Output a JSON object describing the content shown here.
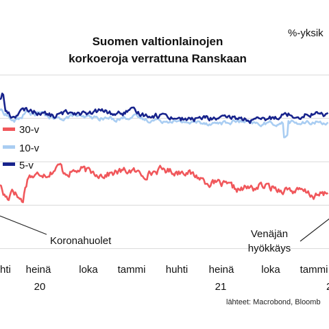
{
  "chart_data": {
    "type": "line",
    "title_lines": [
      "Suomen valtionlainojen",
      "korkoeroja verrattuna Ranskaan"
    ],
    "unit_label": "%-yksik",
    "x_ticks": [
      "hti",
      "heinä",
      "loka",
      "tammi",
      "huhti",
      "heinä",
      "loka",
      "tammi"
    ],
    "x_year_labels": [
      "20",
      "21",
      "2"
    ],
    "ylim": [
      -0.3,
      0.3
    ],
    "gridlines": [
      0.2,
      0.1,
      0.0,
      -0.1,
      -0.2
    ],
    "grid": true,
    "legend_position": "left-middle",
    "series": [
      {
        "name": "30-v",
        "color": "#f0575b",
        "anchors": [
          [
            0,
            -0.05
          ],
          [
            5,
            -0.075
          ],
          [
            12,
            -0.085
          ],
          [
            18,
            -0.06
          ],
          [
            26,
            -0.08
          ],
          [
            33,
            -0.092
          ],
          [
            37,
            -0.058
          ],
          [
            42,
            -0.03
          ],
          [
            50,
            -0.035
          ],
          [
            60,
            -0.025
          ],
          [
            70,
            -0.028
          ],
          [
            80,
            -0.018
          ],
          [
            88,
            -0.008
          ],
          [
            92,
            -0.022
          ],
          [
            100,
            -0.025
          ],
          [
            110,
            -0.022
          ],
          [
            120,
            -0.018
          ],
          [
            130,
            -0.023
          ],
          [
            140,
            -0.026
          ],
          [
            150,
            -0.03
          ],
          [
            160,
            -0.028
          ],
          [
            170,
            -0.024
          ],
          [
            180,
            -0.022
          ],
          [
            190,
            -0.02
          ],
          [
            200,
            -0.025
          ],
          [
            210,
            -0.03
          ],
          [
            220,
            -0.026
          ],
          [
            230,
            -0.02
          ],
          [
            240,
            -0.018
          ],
          [
            250,
            -0.022
          ],
          [
            260,
            -0.024
          ],
          [
            270,
            -0.02
          ],
          [
            280,
            -0.03
          ],
          [
            290,
            -0.035
          ],
          [
            300,
            -0.045
          ],
          [
            310,
            -0.05
          ],
          [
            320,
            -0.05
          ],
          [
            330,
            -0.055
          ],
          [
            340,
            -0.06
          ],
          [
            350,
            -0.065
          ],
          [
            360,
            -0.06
          ],
          [
            370,
            -0.062
          ],
          [
            380,
            -0.055
          ],
          [
            390,
            -0.058
          ],
          [
            400,
            -0.06
          ],
          [
            410,
            -0.065
          ],
          [
            420,
            -0.062
          ],
          [
            430,
            -0.068
          ],
          [
            440,
            -0.068
          ],
          [
            450,
            -0.073
          ],
          [
            460,
            -0.08
          ],
          [
            470,
            -0.075
          ],
          [
            480,
            -0.07
          ]
        ]
      },
      {
        "name": "10-v",
        "color": "#a9cdf2",
        "anchors": [
          [
            0,
            0.12
          ],
          [
            10,
            0.108
          ],
          [
            20,
            0.092
          ],
          [
            30,
            0.102
          ],
          [
            40,
            0.115
          ],
          [
            50,
            0.11
          ],
          [
            60,
            0.112
          ],
          [
            70,
            0.105
          ],
          [
            80,
            0.098
          ],
          [
            90,
            0.1
          ],
          [
            100,
            0.103
          ],
          [
            110,
            0.108
          ],
          [
            120,
            0.1
          ],
          [
            130,
            0.103
          ],
          [
            140,
            0.101
          ],
          [
            150,
            0.099
          ],
          [
            160,
            0.1
          ],
          [
            170,
            0.098
          ],
          [
            180,
            0.101
          ],
          [
            190,
            0.104
          ],
          [
            200,
            0.103
          ],
          [
            210,
            0.098
          ],
          [
            220,
            0.095
          ],
          [
            230,
            0.097
          ],
          [
            240,
            0.094
          ],
          [
            250,
            0.096
          ],
          [
            260,
            0.09
          ],
          [
            270,
            0.093
          ],
          [
            280,
            0.089
          ],
          [
            290,
            0.092
          ],
          [
            300,
            0.09
          ],
          [
            310,
            0.088
          ],
          [
            320,
            0.09
          ],
          [
            330,
            0.089
          ],
          [
            340,
            0.092
          ],
          [
            350,
            0.093
          ],
          [
            360,
            0.09
          ],
          [
            370,
            0.088
          ],
          [
            380,
            0.086
          ],
          [
            390,
            0.089
          ],
          [
            400,
            0.088
          ],
          [
            410,
            0.087
          ],
          [
            420,
            0.092
          ],
          [
            430,
            0.09
          ],
          [
            440,
            0.088
          ],
          [
            450,
            0.089
          ],
          [
            460,
            0.092
          ],
          [
            470,
            0.09
          ],
          [
            480,
            0.092
          ]
        ]
      },
      {
        "name": "5-v",
        "color": "#17238c",
        "anchors": [
          [
            0,
            0.145
          ],
          [
            4,
            0.16
          ],
          [
            8,
            0.118
          ],
          [
            18,
            0.102
          ],
          [
            30,
            0.115
          ],
          [
            40,
            0.12
          ],
          [
            50,
            0.115
          ],
          [
            60,
            0.113
          ],
          [
            70,
            0.108
          ],
          [
            80,
            0.105
          ],
          [
            90,
            0.11
          ],
          [
            100,
            0.115
          ],
          [
            110,
            0.114
          ],
          [
            120,
            0.112
          ],
          [
            130,
            0.108
          ],
          [
            140,
            0.115
          ],
          [
            150,
            0.118
          ],
          [
            160,
            0.112
          ],
          [
            170,
            0.11
          ],
          [
            180,
            0.112
          ],
          [
            190,
            0.118
          ],
          [
            200,
            0.113
          ],
          [
            210,
            0.108
          ],
          [
            220,
            0.108
          ],
          [
            230,
            0.106
          ],
          [
            240,
            0.109
          ],
          [
            250,
            0.103
          ],
          [
            260,
            0.1
          ],
          [
            270,
            0.098
          ],
          [
            280,
            0.097
          ],
          [
            290,
            0.1
          ],
          [
            300,
            0.102
          ],
          [
            310,
            0.099
          ],
          [
            320,
            0.101
          ],
          [
            330,
            0.098
          ],
          [
            340,
            0.102
          ],
          [
            350,
            0.1
          ],
          [
            360,
            0.097
          ],
          [
            370,
            0.094
          ],
          [
            380,
            0.096
          ],
          [
            390,
            0.098
          ],
          [
            400,
            0.102
          ],
          [
            410,
            0.108
          ],
          [
            420,
            0.11
          ],
          [
            430,
            0.105
          ],
          [
            440,
            0.106
          ],
          [
            450,
            0.11
          ],
          [
            460,
            0.112
          ],
          [
            470,
            0.108
          ],
          [
            480,
            0.11
          ]
        ]
      }
    ],
    "annotations": [
      {
        "name": "koronahuolet",
        "text": "Koronahuolet"
      },
      {
        "name": "venajan-hyokkays-line1",
        "text": "Venäjän"
      },
      {
        "name": "venajan-hyokkays-line2",
        "text": "hyökkäys"
      }
    ],
    "source": "lähteet: Macrobond, Bloomb"
  }
}
